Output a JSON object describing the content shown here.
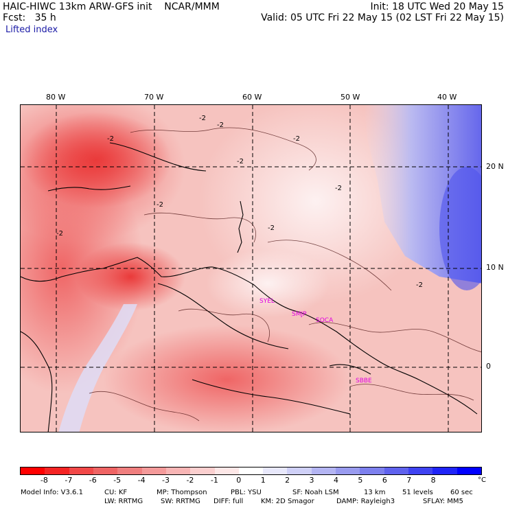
{
  "header": {
    "model_line": "HAIC-HIWC 13km ARW-GFS init    NCAR/MMM",
    "fcst_line": "Fcst:   35 h",
    "init_line": "Init: 18 UTC Wed 20 May 15",
    "valid_line": "Valid: 05 UTC Fri 22 May 15 (02 LST Fri 22 May 15)",
    "field": "Lifted index"
  },
  "axes": {
    "lon_labels": [
      "80 W",
      "70 W",
      "60 W",
      "50 W",
      "40 W"
    ],
    "lat_labels": [
      "20 N",
      "10 N",
      "0"
    ]
  },
  "stations": [
    {
      "id": "SYEL",
      "label": "SYEL"
    },
    {
      "id": "SMJP",
      "label": "SMJP"
    },
    {
      "id": "SOCA",
      "label": "SOCA"
    },
    {
      "id": "SBBE",
      "label": "SBBE"
    }
  ],
  "contour_labels": [
    "-2",
    "-2",
    "-2",
    "-2",
    "-2",
    "-2",
    "-2",
    "-2",
    "-2",
    "-2"
  ],
  "colorbar": {
    "ticks": [
      "-8",
      "-7",
      "-6",
      "-5",
      "-4",
      "-3",
      "-2",
      "-1",
      "0",
      "1",
      "2",
      "3",
      "4",
      "5",
      "6",
      "7",
      "8"
    ],
    "unit": "°C",
    "colors": [
      "#ff0000",
      "#f52424",
      "#f24848",
      "#ef6464",
      "#f07f7f",
      "#f49a9a",
      "#f8b5b5",
      "#fbcfcf",
      "#fde7e7",
      "#ffffff",
      "#e8e8fb",
      "#cfd0f7",
      "#b4b5f3",
      "#999bef",
      "#7d80ee",
      "#5f62ee",
      "#3f43f2",
      "#1f24f8",
      "#0000ff"
    ]
  },
  "footer": {
    "line1": [
      "Model Info: V3.6.1",
      "CU: KF",
      "MP: Thompson",
      "PBL: YSU",
      "SF: Noah LSM",
      "13 km",
      "51 levels",
      "60 sec"
    ],
    "line2": [
      "LW: RRTMG",
      "SW: RRTMG",
      "DIFF: full",
      "KM: 2D Smagor",
      "DAMP: Rayleigh3",
      "SFLAY: MM5"
    ]
  }
}
